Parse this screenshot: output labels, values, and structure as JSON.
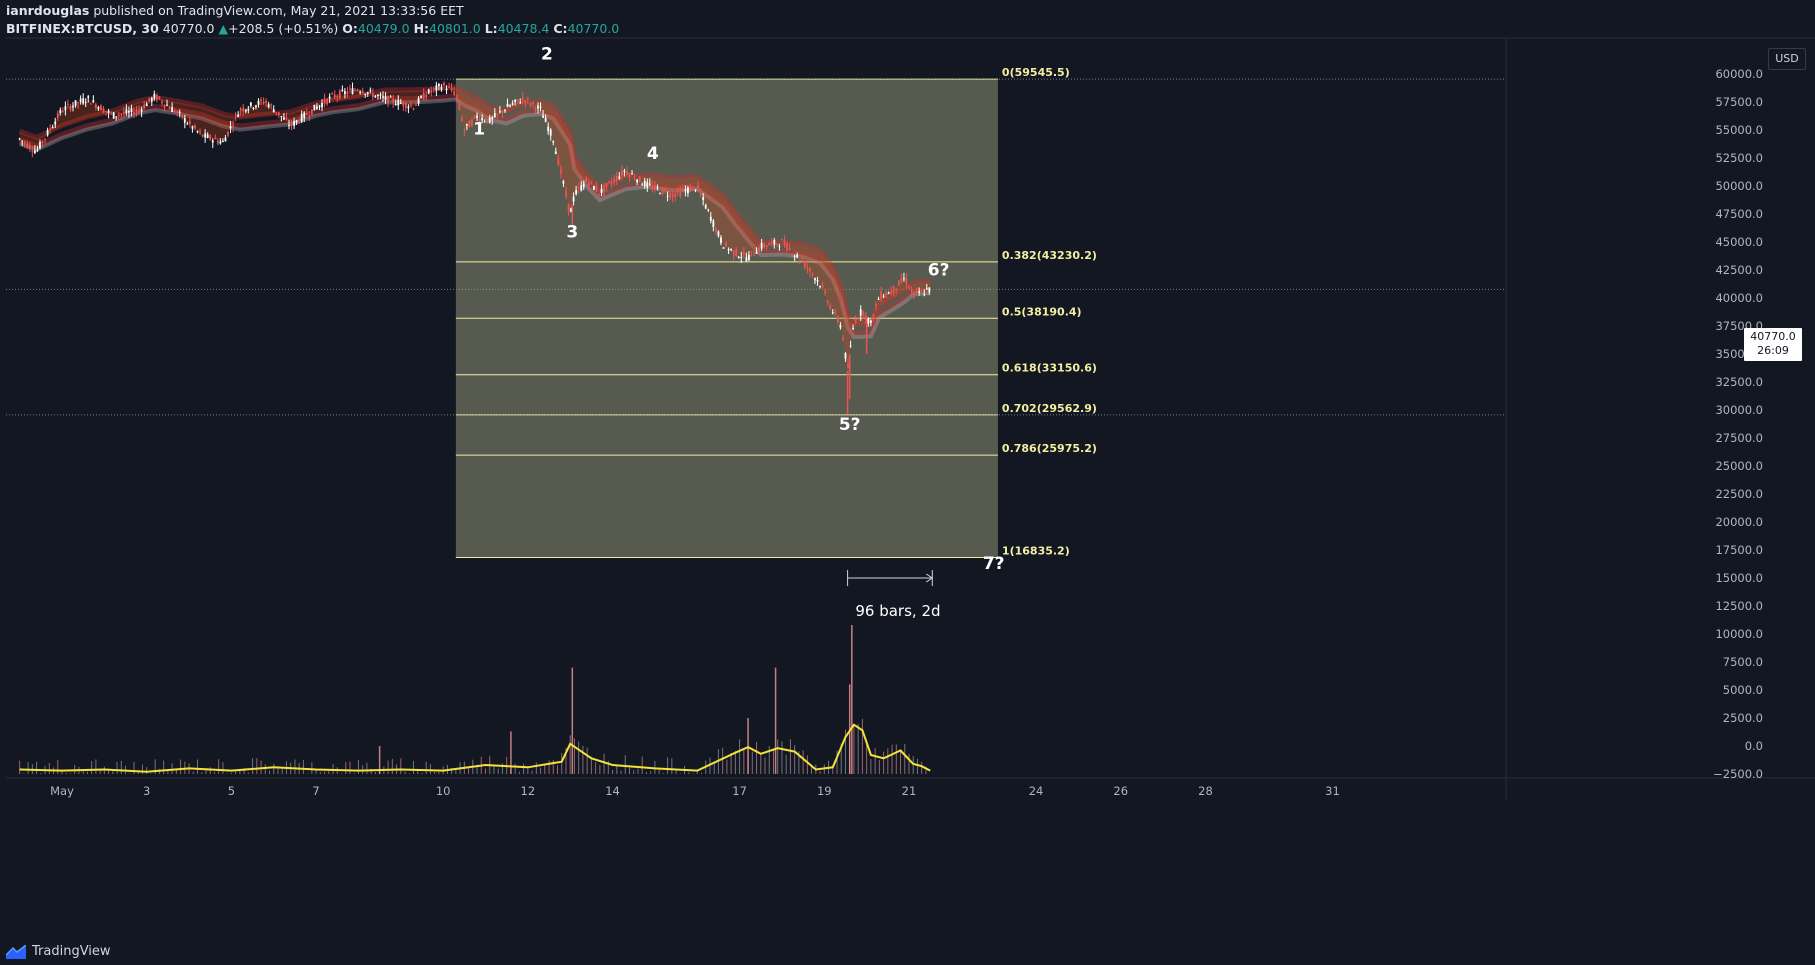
{
  "header": {
    "author": "ianrdouglas",
    "published": "published on TradingView.com, May 21, 2021 13:33:56 EET",
    "symbol": "BITFINEX:BTCUSD, 30",
    "last": "40770.0",
    "change": "+208.5 (+0.51%)",
    "o_label": "O:",
    "o": "40479.0",
    "h_label": "H:",
    "h": "40801.0",
    "l_label": "L:",
    "l": "40478.4",
    "c_label": "C:",
    "c": "40770.0"
  },
  "footer": {
    "brand": "TradingView"
  },
  "axis": {
    "currency": "USD"
  },
  "price_tag": {
    "price": "40770.0",
    "countdown": "26:09"
  },
  "colors": {
    "background": "#131722",
    "fib_fill": "#5b5e52",
    "fib_line": "#f2eea2",
    "candle_up": "#ffffff",
    "candle_down": "#ef5350",
    "ribbon": "#d32f2f",
    "volume_ma": "#f5e33a",
    "positive": "#26a69a"
  },
  "chart_data": {
    "type": "line",
    "title": "",
    "price_axis": {
      "min": -2500,
      "max": 62500,
      "step": 2500,
      "ticks": [
        "60000.0",
        "57500.0",
        "55000.0",
        "52500.0",
        "50000.0",
        "47500.0",
        "45000.0",
        "42500.0",
        "40000.0",
        "37500.0",
        "35000.0",
        "32500.0",
        "30000.0",
        "27500.0",
        "25000.0",
        "22500.0",
        "20000.0",
        "17500.0",
        "15000.0",
        "12500.0",
        "10000.0",
        "7500.0",
        "5000.0",
        "2500.0",
        "0.0",
        "−2500.0"
      ]
    },
    "time_axis": {
      "labels": [
        "May",
        "3",
        "5",
        "7",
        "10",
        "12",
        "14",
        "17",
        "19",
        "21",
        "24",
        "26",
        "28",
        "31"
      ],
      "days": [
        1,
        3,
        5,
        7,
        10,
        12,
        14,
        17,
        19,
        21,
        24,
        26,
        28,
        31
      ]
    },
    "price_series": {
      "name": "BTCUSD",
      "day": [
        0.0,
        0.4,
        1.0,
        1.6,
        2.2,
        2.8,
        3.2,
        3.7,
        4.3,
        4.8,
        5.2,
        5.8,
        6.4,
        7.0,
        7.4,
        8.0,
        8.6,
        9.3,
        9.6,
        10.0,
        10.3,
        10.5,
        10.8,
        11.1,
        11.5,
        11.9,
        12.3,
        12.6,
        13.0,
        13.1,
        13.4,
        13.7,
        14.3,
        14.8,
        15.4,
        16.0,
        16.6,
        16.9,
        17.2,
        17.5,
        18.0,
        18.5,
        18.9,
        19.2,
        19.4,
        19.55,
        19.7,
        19.9,
        20.1,
        20.3,
        20.6,
        20.9,
        21.1,
        21.3,
        21.5
      ],
      "price": [
        54200,
        53100,
        56800,
        57800,
        56300,
        56700,
        58000,
        56600,
        54500,
        53900,
        56800,
        57600,
        55400,
        57000,
        58000,
        58700,
        57800,
        57100,
        58200,
        59000,
        58300,
        55000,
        56200,
        55800,
        57000,
        57800,
        56800,
        54200,
        47500,
        49200,
        50500,
        49400,
        51400,
        50100,
        49200,
        49900,
        44800,
        44000,
        43600,
        44600,
        45000,
        43200,
        41300,
        38800,
        37500,
        33500,
        37900,
        38900,
        37700,
        40200,
        40600,
        41800,
        40300,
        40500,
        40770
      ]
    },
    "volume_series": {
      "name": "Volume",
      "day": [
        0,
        1,
        2,
        3,
        4,
        5,
        6,
        7,
        8,
        9,
        10,
        11,
        12,
        12.8,
        13.0,
        13.5,
        14,
        15,
        16,
        16.9,
        17.2,
        17.5,
        17.9,
        18.3,
        18.8,
        19.2,
        19.5,
        19.7,
        19.9,
        20.1,
        20.4,
        20.8,
        21.1,
        21.3,
        21.5
      ],
      "ma": [
        -2100,
        -2200,
        -2100,
        -2300,
        -2000,
        -2200,
        -1900,
        -2100,
        -2200,
        -2100,
        -2200,
        -1700,
        -1900,
        -1400,
        200,
        -1100,
        -1700,
        -2000,
        -2200,
        -600,
        -100,
        -700,
        -200,
        -500,
        -2100,
        -1900,
        800,
        1900,
        1400,
        -800,
        -1100,
        -400,
        -1600,
        -1800,
        -2200
      ],
      "spikes": [
        {
          "day": 13.05,
          "vol": 7000
        },
        {
          "day": 17.85,
          "vol": 7000
        },
        {
          "day": 19.6,
          "vol": 5500
        },
        {
          "day": 19.65,
          "vol": 10800
        },
        {
          "day": 17.2,
          "vol": 2500
        },
        {
          "day": 11.6,
          "vol": 1300
        },
        {
          "day": 8.5,
          "vol": 0
        }
      ]
    },
    "fib_retracement": {
      "high": 59545.5,
      "low": 16835.2,
      "start_day": 10.3,
      "end_day": 23.1,
      "levels": [
        {
          "ratio": "0",
          "price": 59545.5,
          "label": "0(59545.5)"
        },
        {
          "ratio": "0.382",
          "price": 43230.2,
          "label": "0.382(43230.2)"
        },
        {
          "ratio": "0.5",
          "price": 38190.4,
          "label": "0.5(38190.4)"
        },
        {
          "ratio": "0.618",
          "price": 33150.6,
          "label": "0.618(33150.6)"
        },
        {
          "ratio": "0.702",
          "price": 29562.9,
          "label": "0.702(29562.9)"
        },
        {
          "ratio": "0.786",
          "price": 25975.2,
          "label": "0.786(25975.2)"
        },
        {
          "ratio": "1",
          "price": 16835.2,
          "label": "1(16835.2)"
        }
      ]
    },
    "wave_labels": [
      {
        "text": "1",
        "day": 10.85,
        "price": 54600
      },
      {
        "text": "2",
        "day": 12.45,
        "price": 61300
      },
      {
        "text": "3",
        "day": 13.05,
        "price": 45400
      },
      {
        "text": "4",
        "day": 14.95,
        "price": 52400
      },
      {
        "text": "5?",
        "day": 19.6,
        "price": 28200
      },
      {
        "text": "6?",
        "day": 21.7,
        "price": 42000
      },
      {
        "text": "7?",
        "day": 23.0,
        "price": 15800
      }
    ],
    "date_range": {
      "start_day": 19.55,
      "end_day": 21.55,
      "price": 15000,
      "label": "96 bars, 2d"
    },
    "horizontal_lines": [
      59545.5,
      40770.0,
      29562.9
    ]
  }
}
